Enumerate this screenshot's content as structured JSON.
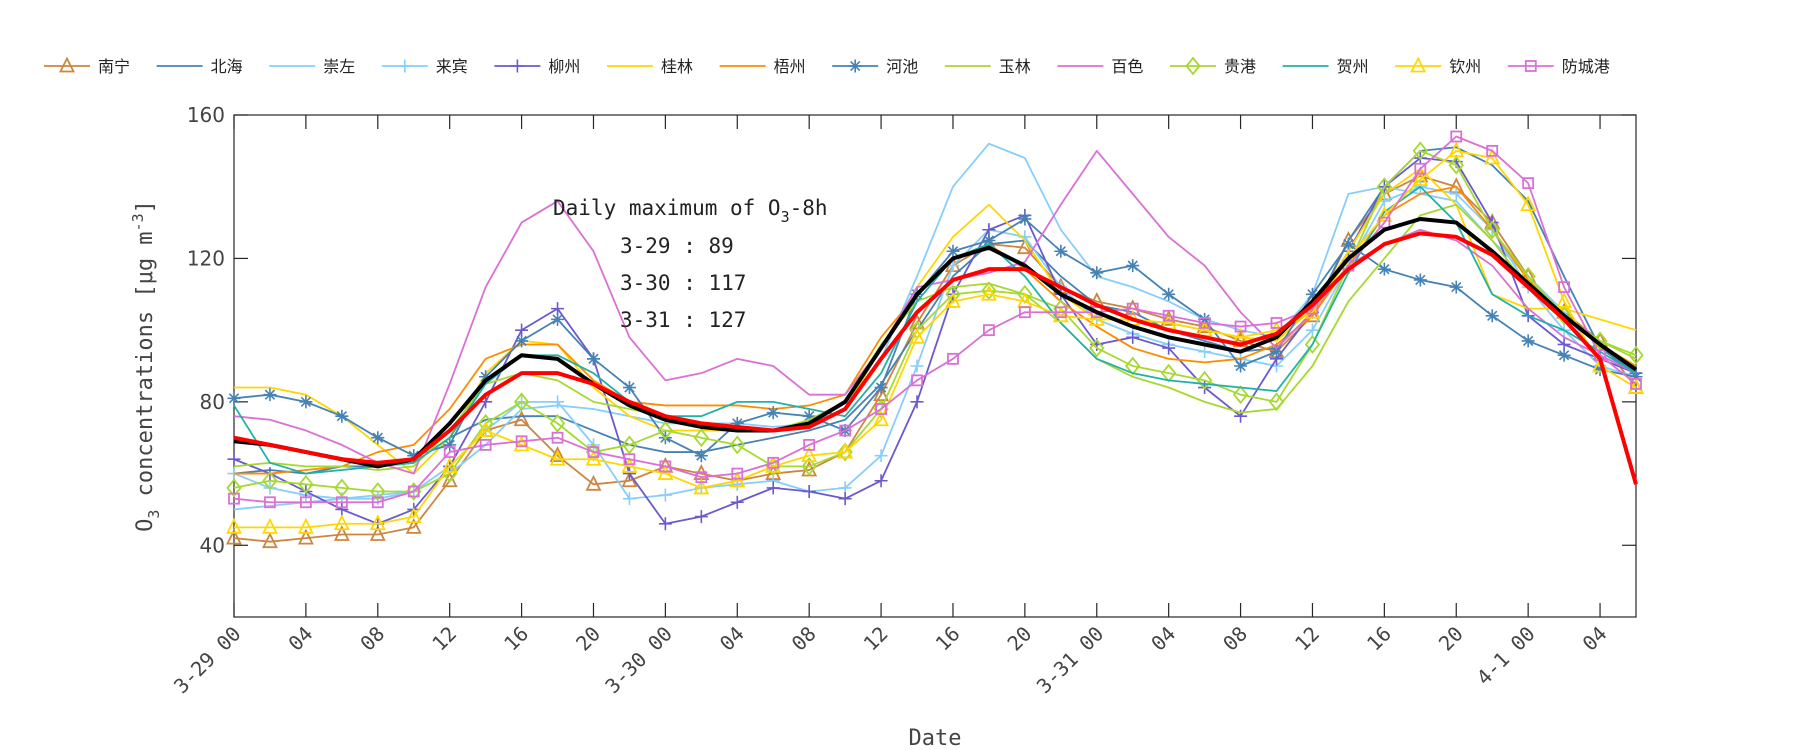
{
  "chart_data": {
    "type": "line",
    "xlabel": "Date",
    "ylabel": "O3 concentrations [μg m-3]",
    "ylim": [
      20,
      160
    ],
    "xlim_hours_from_3-29_00": [
      0,
      78
    ],
    "y_ticks": [
      40,
      80,
      120,
      160
    ],
    "x_ticks_hours": [
      0,
      4,
      8,
      12,
      16,
      20,
      24,
      28,
      32,
      36,
      40,
      44,
      48,
      52,
      56,
      60,
      64,
      68,
      72,
      76
    ],
    "x_tick_labels": [
      "3-29 00",
      "04",
      "08",
      "12",
      "16",
      "20",
      "3-30 00",
      "04",
      "08",
      "12",
      "16",
      "20",
      "3-31 00",
      "04",
      "08",
      "12",
      "16",
      "20",
      "4-1 00",
      "04"
    ],
    "grid": false,
    "legend_placement": "top (horizontal, above axes)",
    "annotation": {
      "title": "Daily maximum of O",
      "title_sub": "3",
      "title_suffix": "-8h",
      "lines": [
        "3-29 : 89",
        "3-30 : 117",
        "3-31 : 127"
      ]
    },
    "x_hours": [
      0,
      2,
      4,
      6,
      8,
      10,
      12,
      14,
      16,
      18,
      20,
      22,
      24,
      26,
      28,
      30,
      32,
      34,
      36,
      38,
      40,
      42,
      44,
      46,
      48,
      50,
      52,
      54,
      56,
      58,
      60,
      62,
      64,
      66,
      68,
      70,
      72,
      74,
      76,
      78
    ],
    "series": [
      {
        "name": "南宁",
        "color": "#CD853F",
        "marker": "triangle",
        "values": [
          42,
          41,
          42,
          43,
          43,
          45,
          58,
          72,
          75,
          65,
          57,
          58,
          62,
          60,
          58,
          60,
          61,
          66,
          82,
          102,
          118,
          124,
          123,
          112,
          108,
          106,
          103,
          101,
          97,
          94,
          104,
          125,
          138,
          143,
          140,
          130,
          115,
          105,
          97,
          84
        ]
      },
      {
        "name": "北海",
        "color": "#4682B4",
        "marker": "none",
        "values": [
          60,
          61,
          60,
          62,
          62,
          63,
          70,
          75,
          76,
          76,
          72,
          68,
          66,
          66,
          68,
          70,
          72,
          75,
          85,
          100,
          115,
          124,
          125,
          115,
          107,
          105,
          100,
          97,
          94,
          95,
          105,
          125,
          140,
          150,
          151,
          146,
          136,
          115,
          95,
          88
        ]
      },
      {
        "name": "崇左",
        "color": "#87CEFA",
        "marker": "none",
        "values": [
          50,
          51,
          52,
          53,
          54,
          55,
          60,
          68,
          78,
          79,
          78,
          76,
          74,
          74,
          74,
          73,
          74,
          78,
          92,
          115,
          140,
          152,
          148,
          128,
          115,
          112,
          108,
          103,
          100,
          98,
          110,
          138,
          140,
          138,
          136,
          125,
          115,
          105,
          92,
          88
        ]
      },
      {
        "name": "来宾",
        "color": "#87CEFA",
        "marker": "plus",
        "values": [
          60,
          56,
          54,
          53,
          53,
          55,
          62,
          72,
          80,
          80,
          68,
          53,
          54,
          56,
          57,
          58,
          55,
          56,
          65,
          90,
          118,
          128,
          126,
          112,
          103,
          99,
          96,
          94,
          92,
          90,
          100,
          118,
          136,
          140,
          138,
          128,
          112,
          100,
          90,
          87
        ]
      },
      {
        "name": "柳州",
        "color": "#6A5ACD",
        "marker": "plus",
        "values": [
          64,
          60,
          55,
          50,
          46,
          50,
          62,
          80,
          100,
          106,
          92,
          60,
          46,
          48,
          52,
          56,
          55,
          53,
          58,
          80,
          110,
          128,
          132,
          110,
          96,
          98,
          95,
          84,
          76,
          92,
          105,
          122,
          140,
          148,
          147,
          130,
          104,
          96,
          92,
          88
        ]
      },
      {
        "name": "桂林",
        "color": "#FFD700",
        "marker": "none",
        "values": [
          84,
          84,
          82,
          76,
          68,
          60,
          70,
          88,
          97,
          96,
          84,
          76,
          72,
          72,
          72,
          72,
          73,
          78,
          95,
          112,
          126,
          135,
          125,
          110,
          103,
          103,
          102,
          100,
          98,
          97,
          106,
          122,
          138,
          145,
          135,
          110,
          106,
          106,
          103,
          100
        ]
      },
      {
        "name": "梧州",
        "color": "#FF8C00",
        "marker": "none",
        "values": [
          60,
          60,
          61,
          62,
          66,
          68,
          78,
          92,
          96,
          96,
          86,
          80,
          79,
          79,
          79,
          78,
          79,
          82,
          98,
          110,
          120,
          124,
          117,
          108,
          101,
          95,
          92,
          91,
          92,
          96,
          104,
          118,
          132,
          138,
          140,
          128,
          114,
          104,
          96,
          90
        ]
      },
      {
        "name": "河池",
        "color": "#4682B4",
        "marker": "star",
        "values": [
          81,
          82,
          80,
          76,
          70,
          65,
          68,
          87,
          97,
          103,
          92,
          84,
          70,
          65,
          74,
          77,
          76,
          72,
          84,
          110,
          122,
          125,
          131,
          122,
          116,
          118,
          110,
          103,
          90,
          94,
          110,
          124,
          117,
          114,
          112,
          104,
          97,
          93,
          89,
          87
        ]
      },
      {
        "name": "玉林",
        "color": "#A6D92E",
        "marker": "none",
        "values": [
          62,
          63,
          62,
          62,
          61,
          62,
          72,
          85,
          88,
          86,
          80,
          78,
          76,
          74,
          72,
          72,
          75,
          80,
          96,
          108,
          112,
          113,
          110,
          102,
          92,
          87,
          84,
          80,
          77,
          78,
          90,
          108,
          120,
          132,
          135,
          125,
          112,
          103,
          97,
          92
        ]
      },
      {
        "name": "百色",
        "color": "#DA70D6",
        "marker": "none",
        "values": [
          76,
          75,
          72,
          68,
          63,
          60,
          85,
          112,
          130,
          136,
          122,
          98,
          86,
          88,
          92,
          90,
          82,
          82,
          95,
          112,
          114,
          116,
          119,
          135,
          150,
          138,
          126,
          118,
          105,
          95,
          105,
          118,
          124,
          128,
          125,
          118,
          106,
          98,
          93,
          88
        ]
      },
      {
        "name": "贵港",
        "color": "#A6D92E",
        "marker": "diamond",
        "values": [
          56,
          58,
          57,
          56,
          55,
          55,
          60,
          74,
          80,
          74,
          66,
          68,
          72,
          70,
          68,
          62,
          62,
          66,
          78,
          100,
          110,
          111,
          110,
          106,
          95,
          90,
          88,
          86,
          82,
          80,
          96,
          118,
          140,
          150,
          146,
          128,
          115,
          104,
          97,
          93
        ]
      },
      {
        "name": "贺州",
        "color": "#20B2AA",
        "marker": "none",
        "values": [
          79,
          63,
          60,
          61,
          62,
          63,
          70,
          85,
          93,
          93,
          88,
          80,
          76,
          76,
          80,
          80,
          78,
          76,
          88,
          108,
          120,
          124,
          115,
          102,
          92,
          88,
          86,
          85,
          84,
          83,
          96,
          116,
          133,
          140,
          130,
          110,
          104,
          100,
          94,
          88
        ]
      },
      {
        "name": "钦州",
        "color": "#FFD700",
        "marker": "triangle",
        "values": [
          45,
          45,
          45,
          46,
          46,
          48,
          62,
          72,
          68,
          64,
          64,
          62,
          60,
          56,
          58,
          62,
          65,
          66,
          75,
          98,
          108,
          110,
          108,
          104,
          103,
          103,
          102,
          100,
          98,
          100,
          105,
          120,
          132,
          142,
          150,
          148,
          135,
          108,
          90,
          84
        ]
      },
      {
        "name": "防城港",
        "color": "#DA70D6",
        "marker": "square",
        "values": [
          53,
          52,
          52,
          52,
          52,
          55,
          66,
          68,
          69,
          70,
          66,
          64,
          62,
          59,
          60,
          63,
          68,
          72,
          78,
          86,
          92,
          100,
          105,
          105,
          105,
          106,
          104,
          102,
          101,
          102,
          106,
          118,
          130,
          145,
          154,
          150,
          141,
          112,
          93,
          85
        ]
      }
    ],
    "extra_lines": [
      {
        "color": "#000000",
        "values": [
          69,
          68,
          66,
          64,
          62,
          64,
          74,
          86,
          93,
          92,
          85,
          79,
          75,
          73,
          72,
          72,
          74,
          80,
          95,
          110,
          120,
          123,
          118,
          110,
          105,
          101,
          98,
          96,
          94,
          98,
          108,
          120,
          128,
          131,
          130,
          122,
          113,
          104,
          96,
          89
        ]
      },
      {
        "color": "#FF0000",
        "values": [
          70,
          68,
          66,
          64,
          63,
          64,
          72,
          82,
          88,
          88,
          85,
          80,
          76,
          74,
          73,
          72,
          73,
          78,
          92,
          105,
          114,
          117,
          117,
          112,
          107,
          103,
          100,
          98,
          96,
          99,
          107,
          117,
          124,
          127,
          126,
          121,
          112,
          103,
          92,
          57
        ]
      }
    ]
  }
}
